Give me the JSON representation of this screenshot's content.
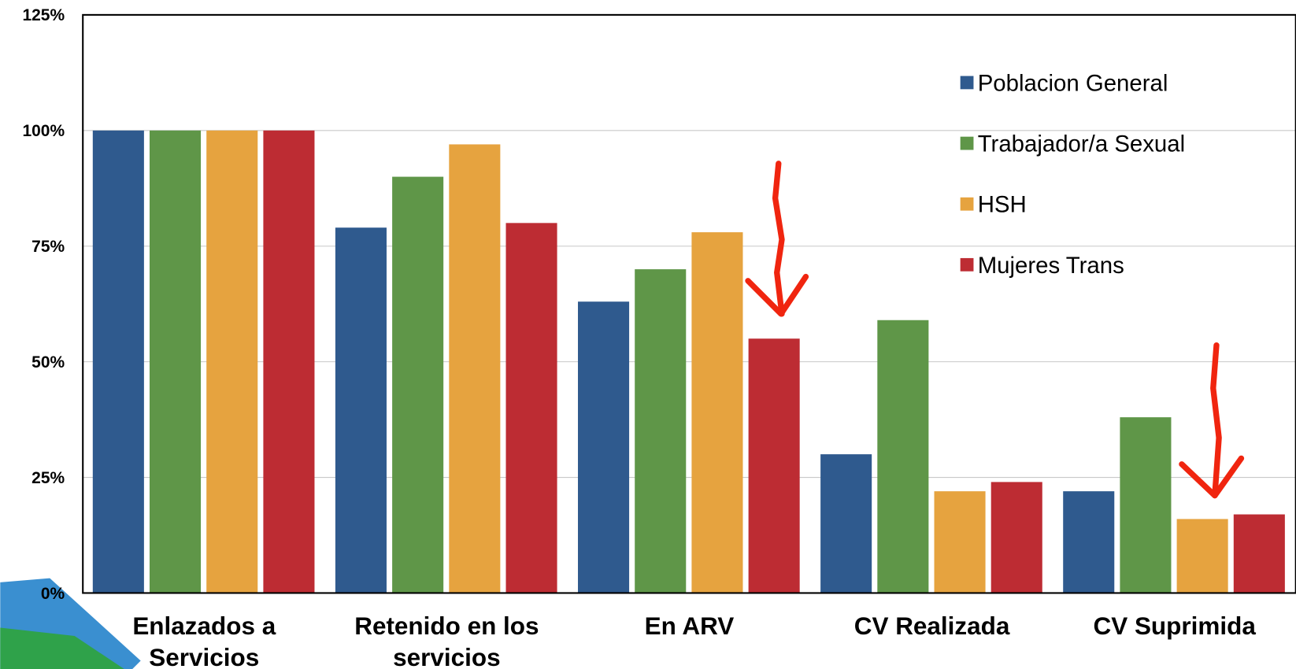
{
  "chart_data": {
    "type": "bar",
    "categories": [
      "Enlazados a Servicios",
      "Retenido en los servicios",
      "En ARV",
      "CV Realizada",
      "CV Suprimida"
    ],
    "series": [
      {
        "name": "Poblacion General",
        "color": "#2f5a8e",
        "values": [
          100,
          79,
          63,
          30,
          22
        ]
      },
      {
        "name": "Trabajador/a Sexual",
        "color": "#5f9648",
        "values": [
          100,
          90,
          70,
          59,
          38
        ]
      },
      {
        "name": "HSH",
        "color": "#e6a33f",
        "values": [
          100,
          97,
          78,
          22,
          16
        ]
      },
      {
        "name": "Mujeres Trans",
        "color": "#bd2c33",
        "values": [
          100,
          80,
          55,
          24,
          17
        ]
      }
    ],
    "ylim": [
      0,
      125
    ],
    "yticks": [
      {
        "value": 0,
        "label": "0%"
      },
      {
        "value": 25,
        "label": "25%"
      },
      {
        "value": 50,
        "label": "50%"
      },
      {
        "value": 75,
        "label": "75%"
      },
      {
        "value": 100,
        "label": "100%"
      },
      {
        "value": 125,
        "label": "125%"
      }
    ],
    "grid": true,
    "legend": "upper right"
  }
}
